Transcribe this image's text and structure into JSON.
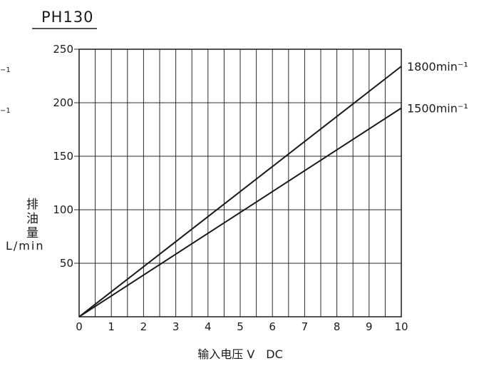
{
  "chart_data": {
    "type": "line",
    "title": "PH130",
    "xlabel": "输入电压 V　DC",
    "ylabel": "排油量",
    "yunit": "L/min",
    "xlim": [
      0,
      10
    ],
    "ylim": [
      0,
      250
    ],
    "x_ticks": [
      0,
      1,
      2,
      3,
      4,
      5,
      6,
      7,
      8,
      9,
      10
    ],
    "y_ticks": [
      50,
      100,
      150,
      200,
      250
    ],
    "x_grid_step": 0.5,
    "y_grid_step": 50,
    "grid": true,
    "legend": "right",
    "series": [
      {
        "name": "1800min⁻¹",
        "x": [
          0,
          10
        ],
        "y": [
          0,
          234
        ]
      },
      {
        "name": "1500min⁻¹",
        "x": [
          0,
          10
        ],
        "y": [
          0,
          195
        ]
      }
    ]
  },
  "edge_fragments": [
    "−1",
    "−1"
  ],
  "colors": {
    "line": "#1a1a1a",
    "grid": "#2b2b2b",
    "background": "#ffffff"
  }
}
